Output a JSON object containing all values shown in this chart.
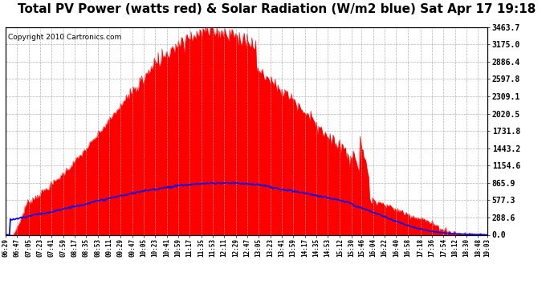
{
  "title": "Total PV Power (watts red) & Solar Radiation (W/m2 blue) Sat Apr 17 19:18",
  "copyright_text": "Copyright 2010 Cartronics.com",
  "y_max": 3463.7,
  "y_ticks": [
    0.0,
    288.6,
    577.3,
    865.9,
    1154.6,
    1443.2,
    1731.8,
    2020.5,
    2309.1,
    2597.8,
    2886.4,
    3175.0,
    3463.7
  ],
  "bg_color": "#ffffff",
  "grid_color": "#aaaaaa",
  "pv_color": "#ff0000",
  "solar_color": "#0000ff",
  "title_fontsize": 11,
  "copyright_fontsize": 6.5,
  "x_tick_fontsize": 5.5,
  "y_tick_fontsize": 7,
  "x_labels": [
    "06:29",
    "06:47",
    "07:05",
    "07:23",
    "07:41",
    "07:59",
    "08:17",
    "08:35",
    "08:53",
    "09:11",
    "09:29",
    "09:47",
    "10:05",
    "10:23",
    "10:41",
    "10:59",
    "11:17",
    "11:35",
    "11:53",
    "12:11",
    "12:29",
    "12:47",
    "13:05",
    "13:23",
    "13:41",
    "13:59",
    "14:17",
    "14:35",
    "14:53",
    "15:12",
    "15:30",
    "15:46",
    "16:04",
    "16:22",
    "16:40",
    "16:58",
    "17:18",
    "17:36",
    "17:54",
    "18:12",
    "18:30",
    "18:48",
    "19:03"
  ]
}
